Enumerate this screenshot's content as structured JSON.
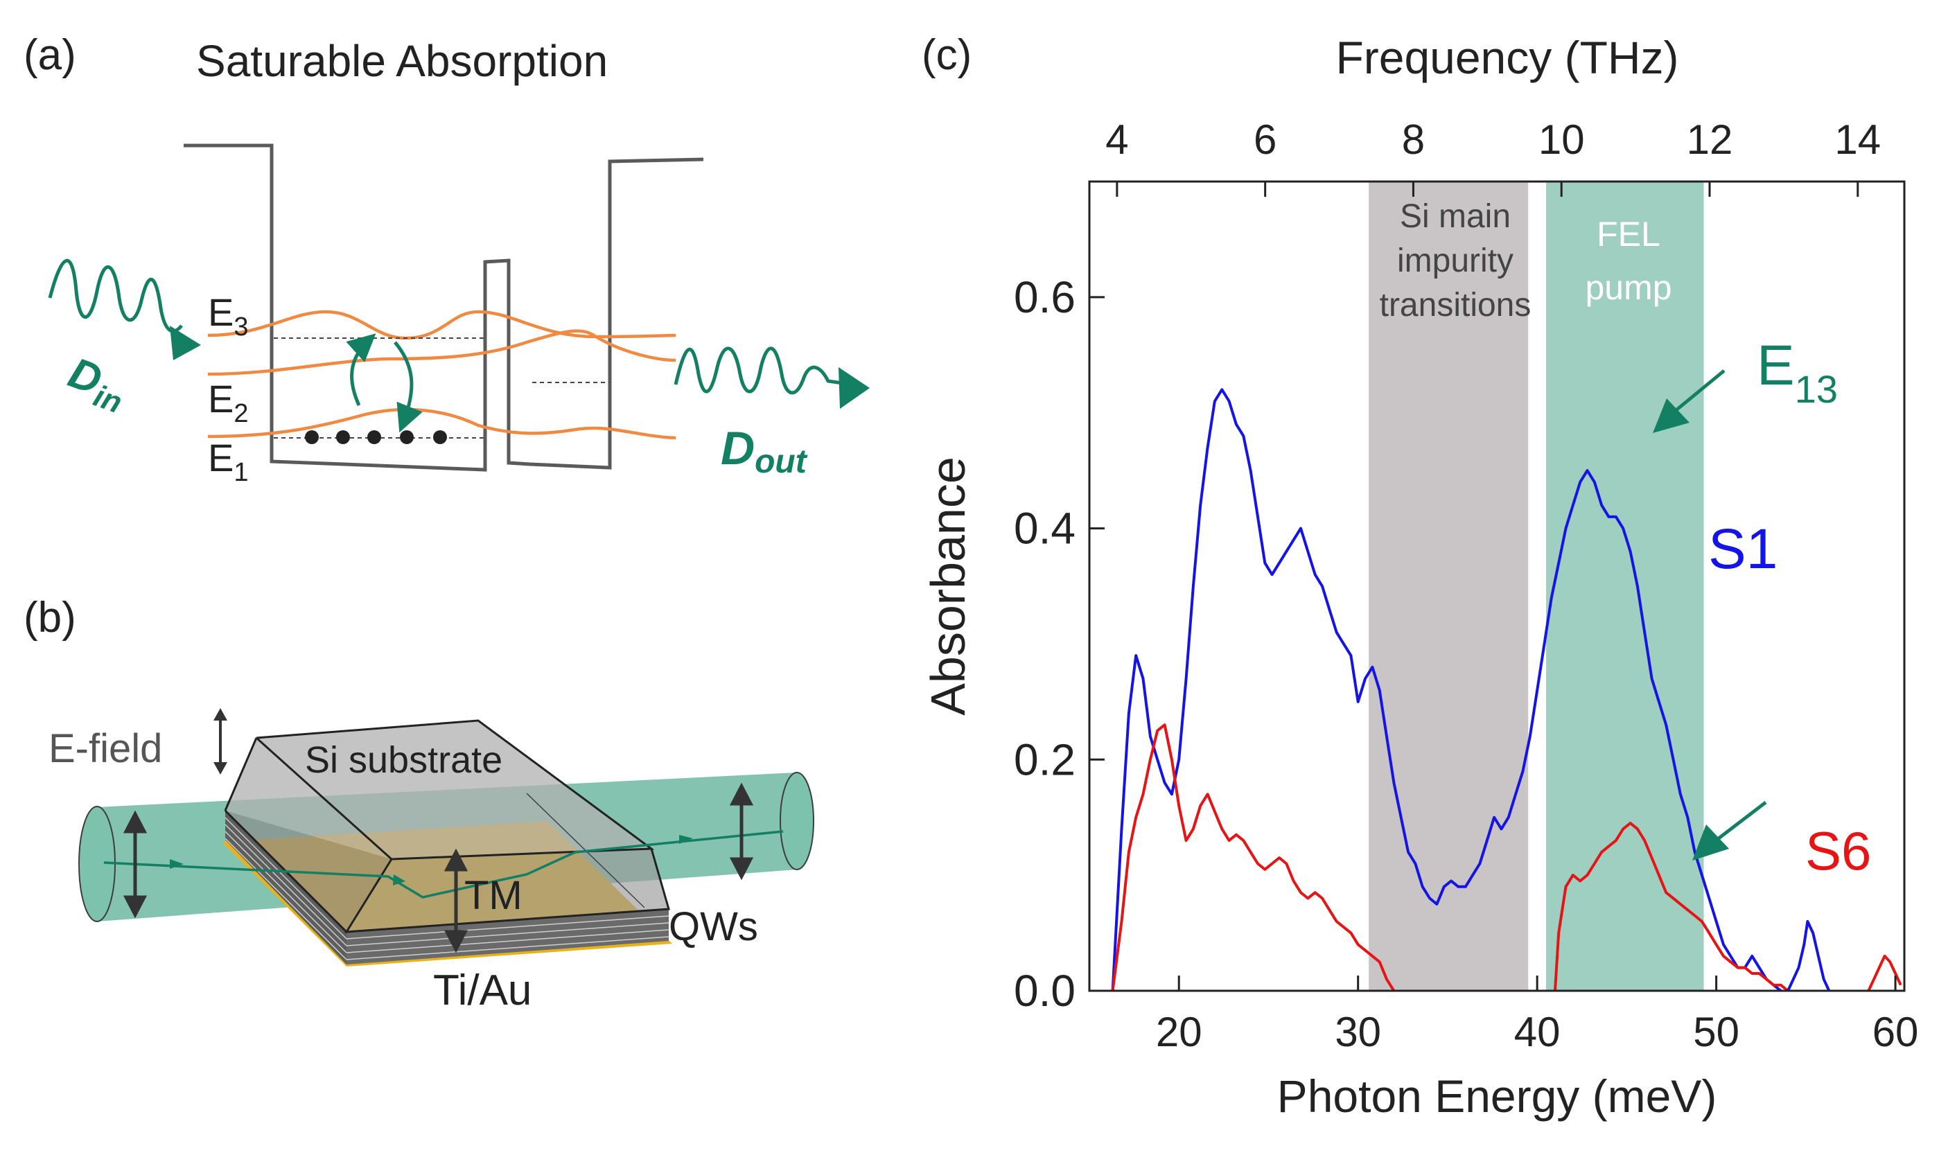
{
  "colors": {
    "teal": "#137f63",
    "teal_band": "#9fcfc0",
    "gray_band": "#c9c5c6",
    "orange": "#f08a43",
    "well": "#5a5a5a",
    "s1": "#1414e6",
    "s6": "#e61414",
    "gold": "#e8b21c"
  },
  "panel_a": {
    "label": "(a)",
    "title": "Saturable Absorption",
    "levels": [
      "E",
      "E",
      "E"
    ],
    "level_subs": [
      "3",
      "2",
      "1"
    ],
    "d_in": "D",
    "d_in_sub": "in",
    "d_out": "D",
    "d_out_sub": "out"
  },
  "panel_b": {
    "label": "(b)",
    "e_field": "E-field",
    "substrate": "Si substrate",
    "tm": "TM",
    "qws": "QWs",
    "contact": "Ti/Au"
  },
  "panel_c": {
    "label": "(c)",
    "band_gray_lines": [
      "Si main",
      "impurity",
      "transitions"
    ],
    "band_teal_lines": [
      "FEL",
      "pump"
    ],
    "e13": "E",
    "e13_sub": "13",
    "s1_label": "S1",
    "s6_label": "S6"
  },
  "chart_data": {
    "type": "line",
    "title": "",
    "xlabel": "Photon Energy (meV)",
    "ylabel": "Absorbance",
    "top_xlabel": "Frequency (THz)",
    "xlim": [
      15,
      60.5
    ],
    "ylim": [
      0,
      0.7
    ],
    "x_ticks": [
      20,
      30,
      40,
      50,
      60
    ],
    "y_ticks": [
      0.0,
      0.2,
      0.4,
      0.6
    ],
    "y_tick_labels": [
      "0.0",
      "0.2",
      "0.4",
      "0.6"
    ],
    "top_ticks_thz": [
      4,
      6,
      8,
      10,
      12,
      14
    ],
    "thz_to_mev": 4.1357,
    "shaded_regions": [
      {
        "name": "Si main impurity transitions",
        "x_range": [
          30.6,
          39.5
        ]
      },
      {
        "name": "FEL pump",
        "x_range": [
          40.5,
          49.3
        ]
      }
    ],
    "series": [
      {
        "name": "S1",
        "x": [
          16.3,
          16.8,
          17.2,
          17.6,
          18.0,
          18.4,
          18.8,
          19.2,
          19.6,
          20.0,
          20.4,
          20.8,
          21.2,
          21.6,
          22.0,
          22.4,
          22.8,
          23.2,
          23.6,
          24.0,
          24.4,
          24.8,
          25.2,
          25.6,
          26.0,
          26.4,
          26.8,
          27.2,
          27.6,
          28.0,
          28.4,
          28.8,
          29.2,
          29.6,
          30.0,
          30.4,
          30.8,
          31.2,
          31.6,
          32.0,
          32.4,
          32.8,
          33.2,
          33.6,
          34.0,
          34.4,
          34.8,
          35.2,
          35.6,
          36.0,
          36.4,
          36.8,
          37.2,
          37.6,
          38.0,
          38.4,
          38.8,
          39.2,
          39.6,
          40.0,
          40.4,
          40.8,
          41.2,
          41.6,
          42.0,
          42.4,
          42.8,
          43.2,
          43.6,
          44.0,
          44.4,
          44.8,
          45.2,
          45.6,
          46.0,
          46.4,
          46.8,
          47.2,
          47.6,
          48.0,
          48.4,
          48.8,
          49.2,
          49.6,
          50.0,
          50.4,
          50.8,
          51.2,
          51.6,
          52.0,
          52.4,
          52.8,
          53.2,
          53.6
        ],
        "y": [
          0.0,
          0.14,
          0.24,
          0.29,
          0.27,
          0.22,
          0.2,
          0.18,
          0.17,
          0.2,
          0.27,
          0.35,
          0.42,
          0.47,
          0.51,
          0.52,
          0.51,
          0.49,
          0.48,
          0.45,
          0.41,
          0.37,
          0.36,
          0.37,
          0.38,
          0.39,
          0.4,
          0.38,
          0.36,
          0.35,
          0.33,
          0.31,
          0.3,
          0.29,
          0.25,
          0.27,
          0.28,
          0.26,
          0.22,
          0.18,
          0.15,
          0.12,
          0.11,
          0.09,
          0.08,
          0.075,
          0.09,
          0.095,
          0.09,
          0.09,
          0.1,
          0.11,
          0.13,
          0.15,
          0.14,
          0.15,
          0.17,
          0.19,
          0.22,
          0.26,
          0.3,
          0.34,
          0.37,
          0.4,
          0.42,
          0.44,
          0.45,
          0.44,
          0.42,
          0.41,
          0.41,
          0.4,
          0.38,
          0.35,
          0.31,
          0.27,
          0.25,
          0.23,
          0.2,
          0.17,
          0.15,
          0.12,
          0.1,
          0.08,
          0.06,
          0.04,
          0.03,
          0.02,
          0.02,
          0.03,
          0.02,
          0.01,
          0.005,
          0.0
        ]
      },
      {
        "name": "S6",
        "x": [
          16.3,
          16.8,
          17.2,
          17.6,
          18.0,
          18.4,
          18.8,
          19.2,
          19.6,
          20.0,
          20.4,
          20.8,
          21.2,
          21.6,
          22.0,
          22.4,
          22.8,
          23.2,
          23.6,
          24.0,
          24.4,
          24.8,
          25.2,
          25.6,
          26.0,
          26.4,
          26.8,
          27.2,
          27.6,
          28.0,
          28.4,
          28.8,
          29.2,
          29.6,
          30.0,
          30.4,
          30.8,
          31.2,
          31.6,
          32.0
        ],
        "y": [
          0.0,
          0.06,
          0.12,
          0.15,
          0.17,
          0.2,
          0.225,
          0.23,
          0.2,
          0.16,
          0.13,
          0.14,
          0.16,
          0.17,
          0.155,
          0.14,
          0.13,
          0.135,
          0.13,
          0.12,
          0.11,
          0.105,
          0.11,
          0.115,
          0.11,
          0.095,
          0.085,
          0.08,
          0.085,
          0.08,
          0.07,
          0.06,
          0.055,
          0.05,
          0.04,
          0.035,
          0.03,
          0.025,
          0.01,
          0.0
        ]
      },
      {
        "name": "S6",
        "x": [
          41.0,
          41.2,
          41.6,
          42.0,
          42.4,
          42.8,
          43.2,
          43.6,
          44.0,
          44.4,
          44.8,
          45.2,
          45.6,
          46.0,
          46.4,
          46.8,
          47.2,
          47.6,
          48.0,
          48.4,
          48.8,
          49.2,
          49.6,
          50.0,
          50.4,
          50.8,
          51.2,
          51.6,
          52.0,
          52.4,
          52.8,
          53.2,
          53.6,
          54.0
        ],
        "y": [
          0.0,
          0.05,
          0.09,
          0.1,
          0.095,
          0.1,
          0.11,
          0.12,
          0.125,
          0.13,
          0.14,
          0.145,
          0.14,
          0.13,
          0.115,
          0.1,
          0.085,
          0.08,
          0.075,
          0.07,
          0.065,
          0.06,
          0.05,
          0.04,
          0.03,
          0.025,
          0.02,
          0.02,
          0.015,
          0.015,
          0.01,
          0.005,
          0.005,
          0.0
        ]
      },
      {
        "name": "S1",
        "x": [
          54.0,
          54.3,
          54.6,
          54.9,
          55.1,
          55.4,
          55.7,
          56.0,
          56.3
        ],
        "y": [
          0.0,
          0.01,
          0.02,
          0.04,
          0.06,
          0.05,
          0.03,
          0.01,
          0.0
        ]
      },
      {
        "name": "S6",
        "x": [
          58.5,
          58.8,
          59.1,
          59.4,
          59.7,
          60.0,
          60.3
        ],
        "y": [
          0.0,
          0.01,
          0.02,
          0.03,
          0.025,
          0.015,
          0.005
        ]
      }
    ]
  }
}
